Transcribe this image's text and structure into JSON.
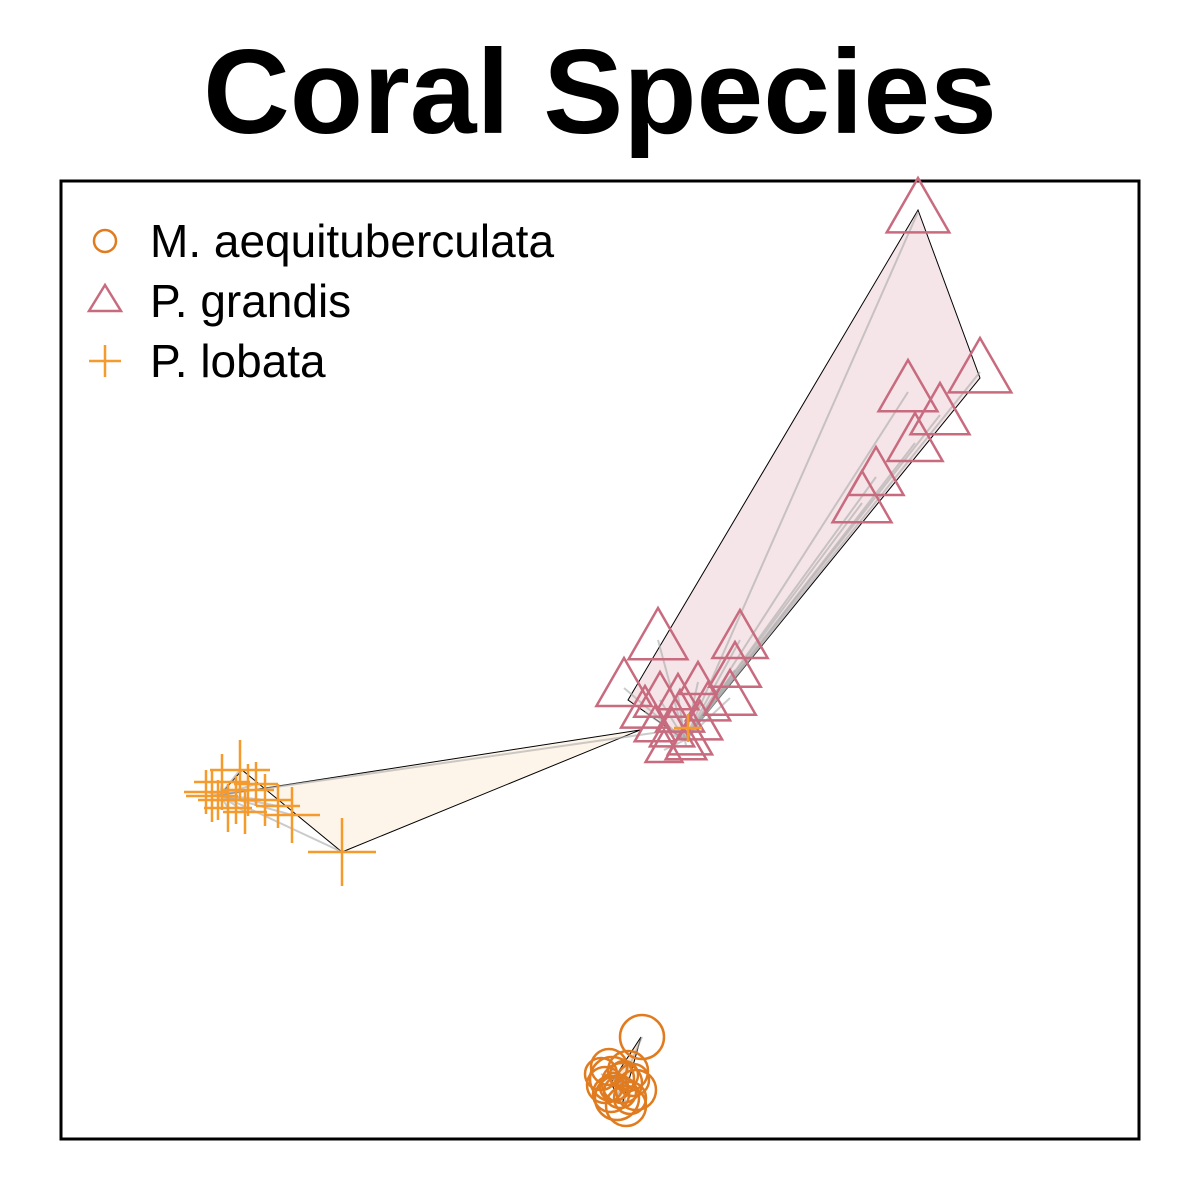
{
  "chart_data": {
    "type": "scatter",
    "title": "Coral Species",
    "xlabel": "",
    "ylabel": "",
    "axes_ticks": false,
    "grid": false,
    "legend_position": "top-left",
    "hull_outline_color": "#000000",
    "spider_color": "#a9a9a9",
    "series": [
      {
        "name": "M. aequituberculata",
        "marker": "circle",
        "color": "#e07b1f",
        "fill": "#f6c69a",
        "centroid": [
          622,
          1083
        ],
        "hull": [
          [
            622,
            1105
          ],
          [
            611,
            1083
          ],
          [
            641,
            1037
          ]
        ],
        "points": [
          {
            "x": 642,
            "y": 1037,
            "s": 22
          },
          {
            "x": 622,
            "y": 1083,
            "s": 20
          },
          {
            "x": 612,
            "y": 1079,
            "s": 22
          },
          {
            "x": 628,
            "y": 1071,
            "s": 20
          },
          {
            "x": 605,
            "y": 1085,
            "s": 18
          },
          {
            "x": 636,
            "y": 1090,
            "s": 20
          },
          {
            "x": 617,
            "y": 1098,
            "s": 22
          },
          {
            "x": 626,
            "y": 1106,
            "s": 20
          },
          {
            "x": 609,
            "y": 1067,
            "s": 18
          },
          {
            "x": 633,
            "y": 1080,
            "s": 16
          },
          {
            "x": 620,
            "y": 1092,
            "s": 16
          },
          {
            "x": 614,
            "y": 1087,
            "s": 14
          },
          {
            "x": 601,
            "y": 1074,
            "s": 16
          },
          {
            "x": 630,
            "y": 1098,
            "s": 16
          },
          {
            "x": 624,
            "y": 1075,
            "s": 14
          },
          {
            "x": 611,
            "y": 1094,
            "s": 18
          }
        ]
      },
      {
        "name": "P. grandis",
        "marker": "triangle",
        "color": "#c86b7f",
        "fill": "#e8c6cc",
        "centroid": [
          685,
          740
        ],
        "hull": [
          [
            685,
            740
          ],
          [
            628,
            700
          ],
          [
            918,
            210
          ],
          [
            980,
            378
          ]
        ],
        "points": [
          {
            "x": 918,
            "y": 212,
            "s": 34
          },
          {
            "x": 980,
            "y": 372,
            "s": 34
          },
          {
            "x": 908,
            "y": 392,
            "s": 32
          },
          {
            "x": 940,
            "y": 415,
            "s": 32
          },
          {
            "x": 915,
            "y": 443,
            "s": 30
          },
          {
            "x": 876,
            "y": 477,
            "s": 30
          },
          {
            "x": 862,
            "y": 503,
            "s": 32
          },
          {
            "x": 658,
            "y": 640,
            "s": 32
          },
          {
            "x": 740,
            "y": 640,
            "s": 30
          },
          {
            "x": 735,
            "y": 670,
            "s": 28
          },
          {
            "x": 730,
            "y": 698,
            "s": 28
          },
          {
            "x": 624,
            "y": 688,
            "s": 30
          },
          {
            "x": 660,
            "y": 700,
            "s": 28
          },
          {
            "x": 645,
            "y": 712,
            "s": 26
          },
          {
            "x": 680,
            "y": 716,
            "s": 26
          },
          {
            "x": 700,
            "y": 725,
            "s": 24
          },
          {
            "x": 672,
            "y": 732,
            "s": 24
          },
          {
            "x": 690,
            "y": 740,
            "s": 24
          },
          {
            "x": 655,
            "y": 728,
            "s": 22
          },
          {
            "x": 708,
            "y": 706,
            "s": 24
          },
          {
            "x": 686,
            "y": 746,
            "s": 22
          },
          {
            "x": 664,
            "y": 750,
            "s": 20
          },
          {
            "x": 698,
            "y": 682,
            "s": 20
          },
          {
            "x": 678,
            "y": 696,
            "s": 22
          }
        ]
      },
      {
        "name": "P. lobata",
        "marker": "plus",
        "color": "#f59a2d",
        "fill": "#fde8d0",
        "centroid": [
          220,
          795
        ],
        "hull": [
          [
            220,
            795
          ],
          [
            640,
            730
          ],
          [
            342,
            852
          ],
          [
            242,
            770
          ]
        ],
        "points": [
          {
            "x": 342,
            "y": 852,
            "s": 34
          },
          {
            "x": 240,
            "y": 770,
            "s": 30
          },
          {
            "x": 292,
            "y": 815,
            "s": 28
          },
          {
            "x": 265,
            "y": 800,
            "s": 26
          },
          {
            "x": 222,
            "y": 782,
            "s": 28
          },
          {
            "x": 212,
            "y": 796,
            "s": 26
          },
          {
            "x": 228,
            "y": 808,
            "s": 24
          },
          {
            "x": 248,
            "y": 790,
            "s": 26
          },
          {
            "x": 236,
            "y": 800,
            "s": 24
          },
          {
            "x": 256,
            "y": 784,
            "s": 22
          },
          {
            "x": 206,
            "y": 792,
            "s": 22
          },
          {
            "x": 245,
            "y": 812,
            "s": 22
          },
          {
            "x": 278,
            "y": 806,
            "s": 22
          },
          {
            "x": 218,
            "y": 800,
            "s": 20
          },
          {
            "x": 688,
            "y": 728,
            "s": 14
          }
        ]
      }
    ]
  }
}
